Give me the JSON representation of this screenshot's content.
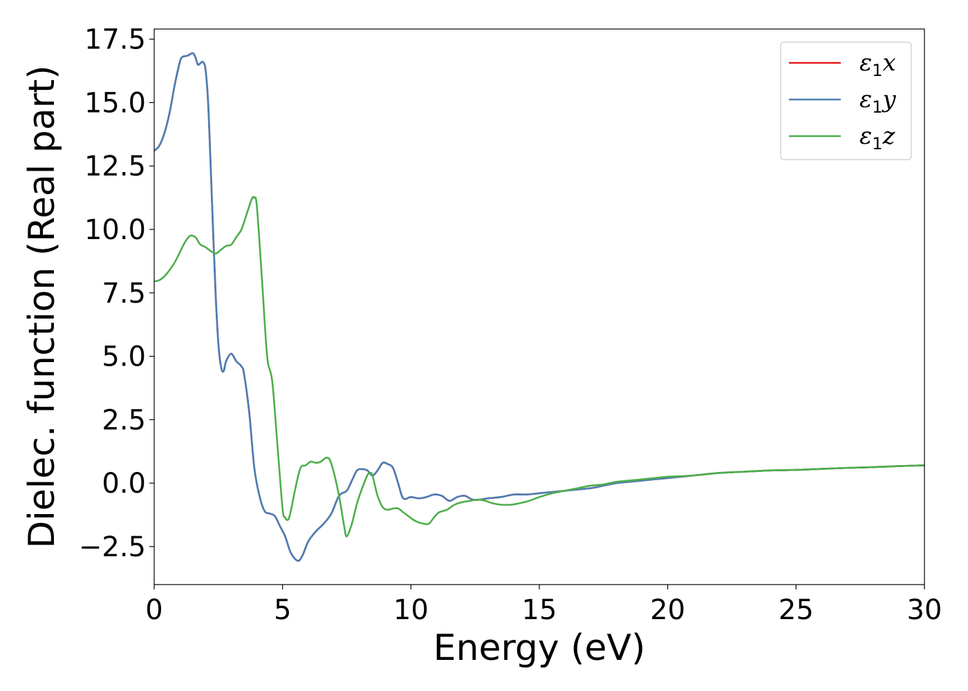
{
  "chart_data": {
    "type": "line",
    "title": "",
    "xlabel": "Energy (eV)",
    "ylabel": "Dielec. function (Real part)",
    "xlim": [
      0,
      30
    ],
    "ylim": [
      -4.0,
      17.9
    ],
    "xticks": [
      0,
      5,
      10,
      15,
      20,
      25,
      30
    ],
    "xtick_labels": [
      "0",
      "5",
      "10",
      "15",
      "20",
      "25",
      "30"
    ],
    "yticks": [
      -2.5,
      0.0,
      2.5,
      5.0,
      7.5,
      10.0,
      12.5,
      15.0,
      17.5
    ],
    "ytick_labels": [
      "−2.5",
      "0.0",
      "2.5",
      "5.0",
      "7.5",
      "10.0",
      "12.5",
      "15.0",
      "17.5"
    ],
    "grid": false,
    "legend_position": "top-right",
    "series": [
      {
        "name": "ε₁x",
        "legend_symbol": "ε",
        "legend_sub": "1",
        "legend_axis": "x",
        "color": "#e41a1c",
        "x": [
          0,
          0.2,
          0.4,
          0.6,
          0.8,
          1.0,
          1.1,
          1.3,
          1.5,
          1.6,
          1.7,
          1.8,
          1.9,
          2.0,
          2.1,
          2.2,
          2.3,
          2.4,
          2.5,
          2.6,
          2.7,
          2.8,
          3.0,
          3.2,
          3.4,
          3.5,
          3.7,
          3.9,
          4.1,
          4.3,
          4.5,
          4.7,
          4.9,
          5.1,
          5.3,
          5.5,
          5.65,
          5.8,
          6.0,
          6.3,
          6.6,
          6.9,
          7.2,
          7.5,
          7.7,
          7.9,
          8.1,
          8.3,
          8.5,
          8.7,
          8.9,
          9.1,
          9.3,
          9.5,
          9.7,
          10.0,
          10.3,
          10.6,
          10.9,
          11.2,
          11.5,
          11.8,
          12.1,
          12.4,
          12.7,
          13.0,
          13.5,
          14.0,
          14.5,
          15.0,
          15.5,
          16.0,
          16.5,
          17.0,
          17.5,
          18.0,
          18.5,
          19.0,
          19.5,
          20.0,
          21.0,
          22.0,
          23.0,
          24.0,
          25.0,
          26.0,
          27.0,
          28.0,
          29.0,
          30.0
        ],
        "values": [
          13.1,
          13.3,
          13.8,
          14.6,
          15.7,
          16.6,
          16.8,
          16.85,
          16.95,
          16.8,
          16.5,
          16.55,
          16.6,
          16.3,
          15.0,
          12.5,
          9.8,
          7.3,
          5.5,
          4.6,
          4.4,
          4.8,
          5.1,
          4.8,
          4.6,
          4.3,
          2.8,
          0.6,
          -0.5,
          -1.1,
          -1.2,
          -1.3,
          -1.7,
          -2.1,
          -2.7,
          -3.0,
          -3.05,
          -2.8,
          -2.3,
          -1.9,
          -1.6,
          -1.2,
          -0.5,
          -0.3,
          0.1,
          0.5,
          0.55,
          0.5,
          0.3,
          0.5,
          0.8,
          0.75,
          0.6,
          0.0,
          -0.6,
          -0.55,
          -0.6,
          -0.55,
          -0.45,
          -0.5,
          -0.7,
          -0.55,
          -0.5,
          -0.65,
          -0.65,
          -0.6,
          -0.55,
          -0.45,
          -0.45,
          -0.4,
          -0.35,
          -0.3,
          -0.25,
          -0.2,
          -0.1,
          0.0,
          0.05,
          0.1,
          0.15,
          0.2,
          0.3,
          0.4,
          0.45,
          0.5,
          0.52,
          0.56,
          0.6,
          0.63,
          0.67,
          0.7
        ]
      },
      {
        "name": "ε₁y",
        "legend_symbol": "ε",
        "legend_sub": "1",
        "legend_axis": "y",
        "color": "#4a7fb5",
        "x": [
          0,
          0.2,
          0.4,
          0.6,
          0.8,
          1.0,
          1.1,
          1.3,
          1.5,
          1.6,
          1.7,
          1.8,
          1.9,
          2.0,
          2.1,
          2.2,
          2.3,
          2.4,
          2.5,
          2.6,
          2.7,
          2.8,
          3.0,
          3.2,
          3.4,
          3.5,
          3.7,
          3.9,
          4.1,
          4.3,
          4.5,
          4.7,
          4.9,
          5.1,
          5.3,
          5.5,
          5.65,
          5.8,
          6.0,
          6.3,
          6.6,
          6.9,
          7.2,
          7.5,
          7.7,
          7.9,
          8.1,
          8.3,
          8.5,
          8.7,
          8.9,
          9.1,
          9.3,
          9.5,
          9.7,
          10.0,
          10.3,
          10.6,
          10.9,
          11.2,
          11.5,
          11.8,
          12.1,
          12.4,
          12.7,
          13.0,
          13.5,
          14.0,
          14.5,
          15.0,
          15.5,
          16.0,
          16.5,
          17.0,
          17.5,
          18.0,
          18.5,
          19.0,
          19.5,
          20.0,
          21.0,
          22.0,
          23.0,
          24.0,
          25.0,
          26.0,
          27.0,
          28.0,
          29.0,
          30.0
        ],
        "values": [
          13.1,
          13.3,
          13.8,
          14.6,
          15.7,
          16.6,
          16.8,
          16.85,
          16.95,
          16.8,
          16.5,
          16.55,
          16.6,
          16.3,
          15.0,
          12.5,
          9.8,
          7.3,
          5.5,
          4.6,
          4.4,
          4.8,
          5.1,
          4.8,
          4.6,
          4.3,
          2.8,
          0.6,
          -0.5,
          -1.1,
          -1.2,
          -1.3,
          -1.7,
          -2.1,
          -2.7,
          -3.0,
          -3.05,
          -2.8,
          -2.3,
          -1.9,
          -1.6,
          -1.2,
          -0.5,
          -0.3,
          0.1,
          0.5,
          0.55,
          0.5,
          0.3,
          0.5,
          0.8,
          0.75,
          0.6,
          0.0,
          -0.6,
          -0.55,
          -0.6,
          -0.55,
          -0.45,
          -0.5,
          -0.7,
          -0.55,
          -0.5,
          -0.65,
          -0.65,
          -0.6,
          -0.55,
          -0.45,
          -0.45,
          -0.4,
          -0.35,
          -0.3,
          -0.25,
          -0.2,
          -0.1,
          0.0,
          0.05,
          0.1,
          0.15,
          0.2,
          0.3,
          0.4,
          0.45,
          0.5,
          0.52,
          0.56,
          0.6,
          0.63,
          0.67,
          0.7
        ]
      },
      {
        "name": "ε₁z",
        "legend_symbol": "ε",
        "legend_sub": "1",
        "legend_axis": "z",
        "color": "#4daf4a",
        "x": [
          0,
          0.2,
          0.4,
          0.6,
          0.8,
          1.0,
          1.2,
          1.4,
          1.6,
          1.7,
          1.8,
          2.0,
          2.2,
          2.4,
          2.6,
          2.8,
          3.0,
          3.2,
          3.4,
          3.6,
          3.8,
          3.9,
          4.0,
          4.2,
          4.4,
          4.6,
          4.8,
          5.0,
          5.1,
          5.2,
          5.3,
          5.5,
          5.7,
          5.9,
          6.1,
          6.3,
          6.5,
          6.7,
          6.85,
          7.0,
          7.2,
          7.4,
          7.5,
          7.7,
          7.9,
          8.1,
          8.3,
          8.4,
          8.5,
          8.7,
          8.9,
          9.1,
          9.3,
          9.5,
          9.7,
          9.9,
          10.1,
          10.3,
          10.5,
          10.7,
          10.9,
          11.1,
          11.4,
          11.7,
          12.0,
          12.3,
          12.6,
          12.9,
          13.2,
          13.5,
          13.9,
          14.2,
          14.6,
          15.0,
          15.5,
          16.0,
          16.5,
          17.0,
          17.5,
          18.0,
          18.5,
          19.0,
          19.5,
          20.0,
          21.0,
          22.0,
          23.0,
          24.0,
          25.0,
          26.0,
          27.0,
          28.0,
          29.0,
          30.0
        ],
        "values": [
          7.95,
          8.0,
          8.15,
          8.4,
          8.7,
          9.1,
          9.5,
          9.75,
          9.7,
          9.55,
          9.4,
          9.3,
          9.15,
          9.05,
          9.2,
          9.35,
          9.4,
          9.7,
          10.0,
          10.6,
          11.2,
          11.25,
          10.9,
          8.0,
          5.0,
          4.0,
          1.5,
          -1.0,
          -1.35,
          -1.45,
          -1.2,
          -0.2,
          0.6,
          0.7,
          0.85,
          0.8,
          0.85,
          1.0,
          0.9,
          0.4,
          -0.5,
          -1.7,
          -2.1,
          -1.6,
          -0.8,
          -0.2,
          0.3,
          0.4,
          0.3,
          -0.5,
          -0.95,
          -1.05,
          -1.0,
          -1.0,
          -1.15,
          -1.3,
          -1.45,
          -1.55,
          -1.6,
          -1.6,
          -1.35,
          -1.15,
          -1.05,
          -0.85,
          -0.75,
          -0.7,
          -0.65,
          -0.7,
          -0.8,
          -0.85,
          -0.85,
          -0.8,
          -0.7,
          -0.55,
          -0.4,
          -0.3,
          -0.2,
          -0.1,
          -0.05,
          0.05,
          0.1,
          0.15,
          0.2,
          0.25,
          0.3,
          0.4,
          0.45,
          0.5,
          0.52,
          0.56,
          0.6,
          0.63,
          0.67,
          0.7
        ]
      }
    ]
  }
}
